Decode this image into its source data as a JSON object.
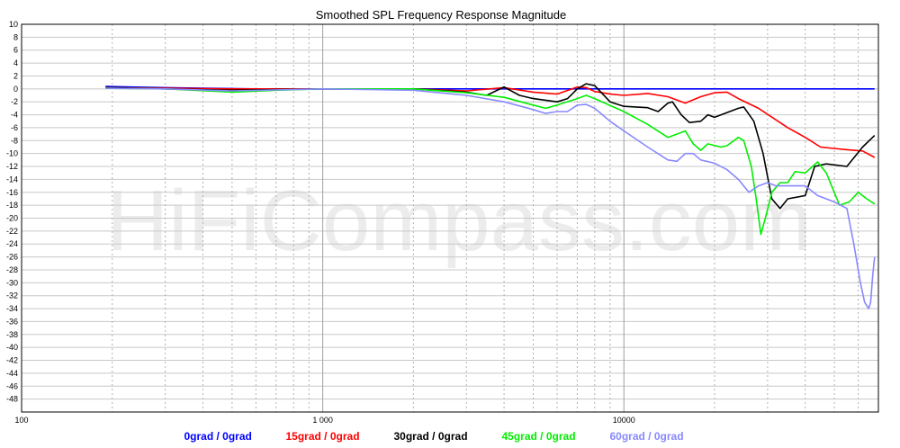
{
  "chart_data": {
    "type": "line",
    "title": "Smoothed SPL Frequency Response Magnitude",
    "watermark": "HiFiCompass.com",
    "x_scale": "log",
    "xlim": [
      100,
      70000
    ],
    "ylim": [
      -50,
      10
    ],
    "x_tick_labels": [
      {
        "value": 100,
        "label": "100"
      },
      {
        "value": 1000,
        "label": "1 000"
      },
      {
        "value": 10000,
        "label": "10000"
      }
    ],
    "y_ticks": [
      10,
      8,
      6,
      4,
      2,
      0,
      -2,
      -4,
      -6,
      -8,
      -10,
      -12,
      -14,
      -16,
      -18,
      -20,
      -22,
      -24,
      -26,
      -28,
      -30,
      -32,
      -34,
      -36,
      -38,
      -40,
      -42,
      -44,
      -46,
      -48
    ],
    "grid": true,
    "legend_position": "bottom",
    "series": [
      {
        "name": "0grad / 0grad",
        "color": "#0000ff",
        "points": [
          [
            190,
            0.4
          ],
          [
            230,
            0.3
          ],
          [
            300,
            0.2
          ],
          [
            400,
            0.1
          ],
          [
            600,
            0
          ],
          [
            1000,
            0
          ],
          [
            2000,
            0
          ],
          [
            5000,
            0
          ],
          [
            10000,
            0
          ],
          [
            20000,
            0
          ],
          [
            40000,
            0
          ],
          [
            68000,
            0
          ]
        ]
      },
      {
        "name": "15grad / 0grad",
        "color": "#ff0000",
        "points": [
          [
            190,
            0.2
          ],
          [
            300,
            0.1
          ],
          [
            500,
            0
          ],
          [
            1000,
            0
          ],
          [
            2000,
            0
          ],
          [
            3000,
            -0.3
          ],
          [
            4000,
            0.2
          ],
          [
            5000,
            -0.5
          ],
          [
            6000,
            -0.8
          ],
          [
            7000,
            0.3
          ],
          [
            7500,
            0.2
          ],
          [
            8000,
            -0.4
          ],
          [
            9000,
            -0.8
          ],
          [
            10000,
            -1
          ],
          [
            12000,
            -0.7
          ],
          [
            14000,
            -1.2
          ],
          [
            16000,
            -2.2
          ],
          [
            18000,
            -1.2
          ],
          [
            20000,
            -0.6
          ],
          [
            22000,
            -0.5
          ],
          [
            24000,
            -1.5
          ],
          [
            28000,
            -3
          ],
          [
            35000,
            -6
          ],
          [
            40000,
            -7.5
          ],
          [
            45000,
            -9
          ],
          [
            55000,
            -9.4
          ],
          [
            62000,
            -9.6
          ],
          [
            68000,
            -10.6
          ]
        ]
      },
      {
        "name": "30grad / 0grad",
        "color": "#000000",
        "points": [
          [
            190,
            0.2
          ],
          [
            300,
            0
          ],
          [
            500,
            -0.2
          ],
          [
            1000,
            0
          ],
          [
            2000,
            0
          ],
          [
            3000,
            -0.5
          ],
          [
            3500,
            -1
          ],
          [
            4000,
            0.3
          ],
          [
            4500,
            -1
          ],
          [
            5000,
            -1.5
          ],
          [
            6000,
            -2
          ],
          [
            6500,
            -1.5
          ],
          [
            7000,
            0
          ],
          [
            7500,
            0.8
          ],
          [
            8000,
            0.5
          ],
          [
            9000,
            -2
          ],
          [
            10000,
            -2.7
          ],
          [
            12000,
            -2.9
          ],
          [
            13000,
            -3.5
          ],
          [
            14000,
            -2.2
          ],
          [
            14500,
            -2
          ],
          [
            15500,
            -4
          ],
          [
            16500,
            -5.2
          ],
          [
            18000,
            -5
          ],
          [
            19000,
            -4
          ],
          [
            20000,
            -4.4
          ],
          [
            24000,
            -3
          ],
          [
            25000,
            -2.8
          ],
          [
            27000,
            -5
          ],
          [
            29000,
            -10
          ],
          [
            31000,
            -17
          ],
          [
            33000,
            -18.5
          ],
          [
            35000,
            -17
          ],
          [
            40000,
            -16.5
          ],
          [
            43000,
            -12
          ],
          [
            47000,
            -11.6
          ],
          [
            55000,
            -12
          ],
          [
            62000,
            -9
          ],
          [
            68000,
            -7.2
          ]
        ]
      },
      {
        "name": "45grad / 0grad",
        "color": "#00ee00",
        "points": [
          [
            190,
            0.1
          ],
          [
            300,
            0
          ],
          [
            500,
            -0.5
          ],
          [
            700,
            -0.2
          ],
          [
            1000,
            0
          ],
          [
            2000,
            0
          ],
          [
            3000,
            -0.6
          ],
          [
            4000,
            -1.3
          ],
          [
            5000,
            -2.5
          ],
          [
            5500,
            -3
          ],
          [
            6000,
            -2.5
          ],
          [
            7000,
            -1.5
          ],
          [
            7500,
            -1
          ],
          [
            8000,
            -1.5
          ],
          [
            10000,
            -3.5
          ],
          [
            12000,
            -5.5
          ],
          [
            14000,
            -7.5
          ],
          [
            15000,
            -7
          ],
          [
            16000,
            -6.5
          ],
          [
            17000,
            -8.5
          ],
          [
            18000,
            -9.5
          ],
          [
            19000,
            -8.5
          ],
          [
            21000,
            -9
          ],
          [
            22000,
            -8.8
          ],
          [
            24000,
            -7.5
          ],
          [
            25000,
            -8
          ],
          [
            26500,
            -12
          ],
          [
            27500,
            -17
          ],
          [
            28500,
            -22.5
          ],
          [
            29500,
            -20
          ],
          [
            31000,
            -16
          ],
          [
            33000,
            -14.5
          ],
          [
            35000,
            -14.5
          ],
          [
            37000,
            -12.8
          ],
          [
            40000,
            -13
          ],
          [
            44000,
            -11.3
          ],
          [
            47000,
            -13
          ],
          [
            52000,
            -18
          ],
          [
            56000,
            -17.5
          ],
          [
            60000,
            -16
          ],
          [
            64000,
            -17
          ],
          [
            68000,
            -17.8
          ]
        ]
      },
      {
        "name": "60grad / 0grad",
        "color": "#8888ff",
        "points": [
          [
            190,
            0.1
          ],
          [
            300,
            0
          ],
          [
            500,
            -0.3
          ],
          [
            1000,
            0
          ],
          [
            2000,
            -0.2
          ],
          [
            3000,
            -1
          ],
          [
            4000,
            -2
          ],
          [
            5000,
            -3.2
          ],
          [
            5500,
            -3.8
          ],
          [
            6000,
            -3.5
          ],
          [
            6500,
            -3.5
          ],
          [
            7000,
            -2.5
          ],
          [
            7500,
            -2.4
          ],
          [
            8000,
            -3
          ],
          [
            9000,
            -5
          ],
          [
            10000,
            -6.5
          ],
          [
            12000,
            -9
          ],
          [
            14000,
            -11
          ],
          [
            15000,
            -11.2
          ],
          [
            16000,
            -10
          ],
          [
            17000,
            -10
          ],
          [
            18000,
            -11
          ],
          [
            20000,
            -11.5
          ],
          [
            22000,
            -12.5
          ],
          [
            24000,
            -14
          ],
          [
            26000,
            -16
          ],
          [
            28000,
            -15
          ],
          [
            30000,
            -14.5
          ],
          [
            32000,
            -15
          ],
          [
            35000,
            -15
          ],
          [
            40000,
            -15
          ],
          [
            44000,
            -16.5
          ],
          [
            50000,
            -17.5
          ],
          [
            55000,
            -18.5
          ],
          [
            58000,
            -24
          ],
          [
            61000,
            -30
          ],
          [
            63000,
            -33
          ],
          [
            65000,
            -34
          ],
          [
            66000,
            -33
          ],
          [
            67000,
            -29
          ],
          [
            68000,
            -26
          ]
        ]
      }
    ]
  }
}
